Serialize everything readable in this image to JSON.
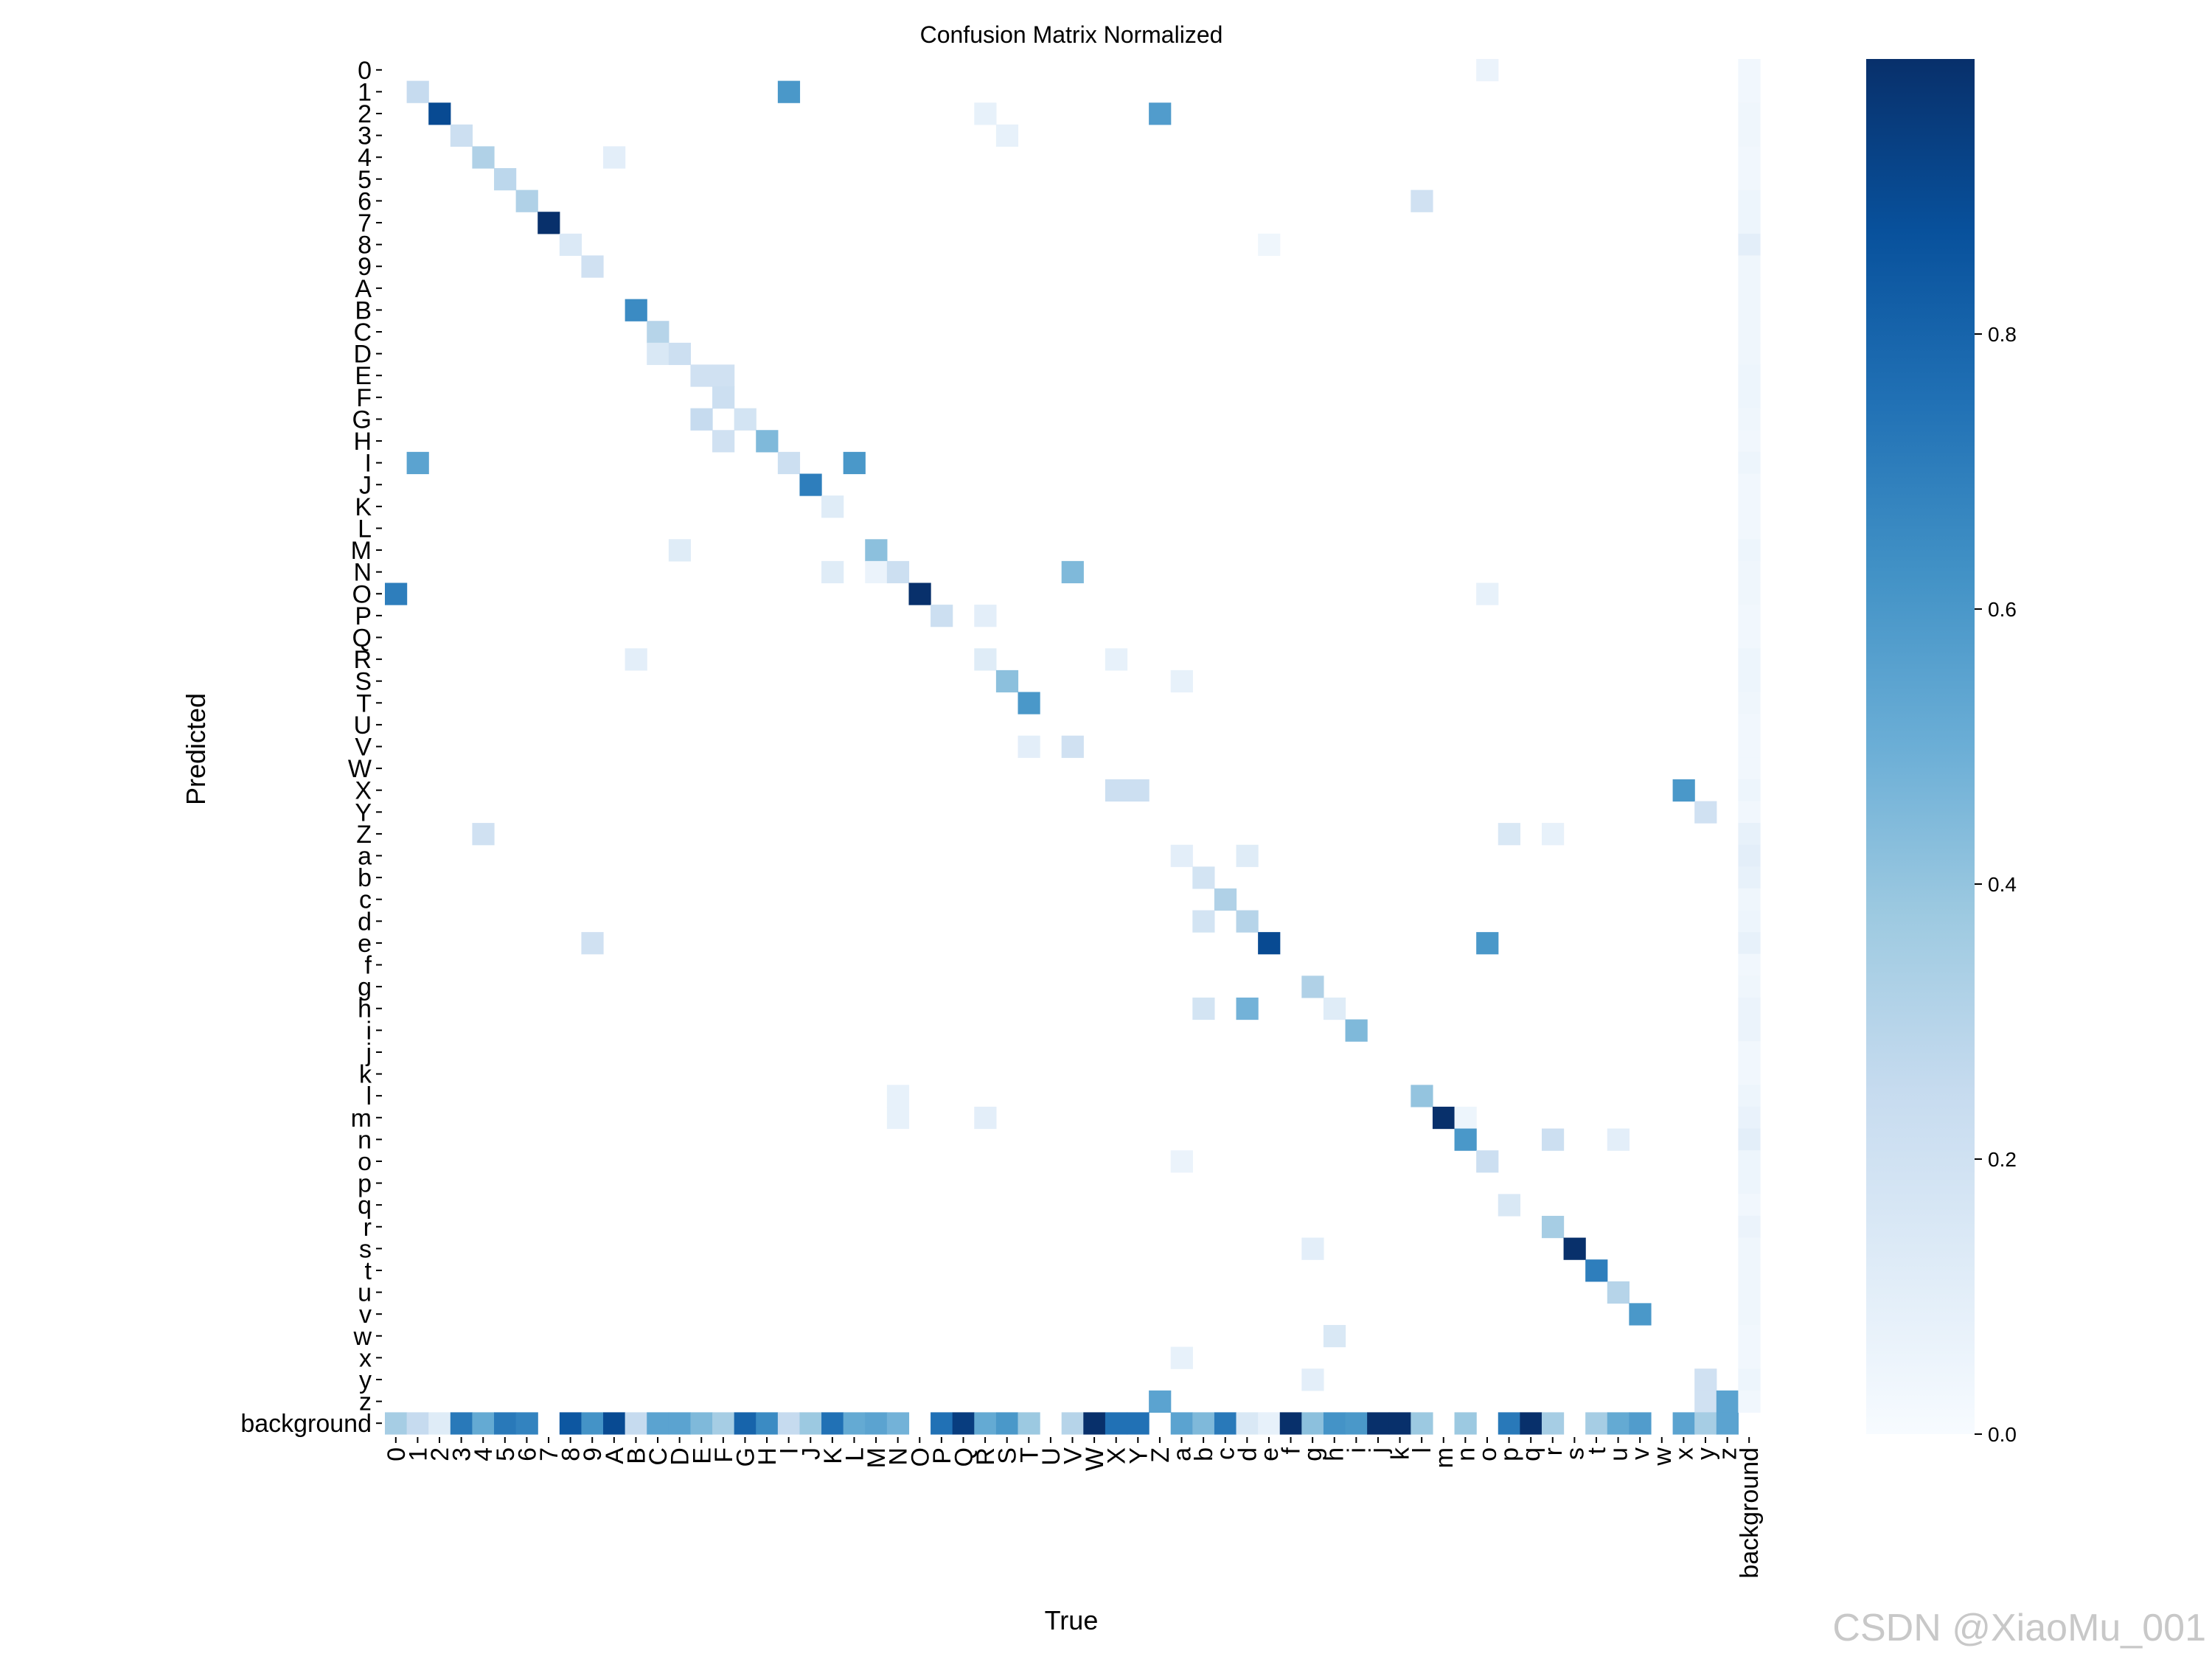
{
  "chart_data": {
    "type": "heatmap",
    "title": "Confusion Matrix Normalized",
    "xlabel": "True",
    "ylabel": "Predicted",
    "labels": [
      "0",
      "1",
      "2",
      "3",
      "4",
      "5",
      "6",
      "7",
      "8",
      "9",
      "A",
      "B",
      "C",
      "D",
      "E",
      "F",
      "G",
      "H",
      "I",
      "J",
      "K",
      "L",
      "M",
      "N",
      "O",
      "P",
      "Q",
      "R",
      "S",
      "T",
      "U",
      "V",
      "W",
      "X",
      "Y",
      "Z",
      "a",
      "b",
      "c",
      "d",
      "e",
      "f",
      "g",
      "h",
      "i",
      "j",
      "k",
      "l",
      "m",
      "n",
      "o",
      "p",
      "q",
      "r",
      "s",
      "t",
      "u",
      "v",
      "w",
      "x",
      "y",
      "z",
      "background"
    ],
    "colorbar": {
      "ticks": [
        0.0,
        0.2,
        0.4,
        0.6,
        0.8
      ],
      "tick_labels": [
        "0.0",
        "0.2",
        "0.4",
        "0.6",
        "0.8"
      ],
      "vmin": 0.0,
      "vmax": 1.0
    },
    "colormap": [
      "#f7fbff",
      "#deebf7",
      "#c6dbef",
      "#9ecae1",
      "#6baed6",
      "#4292c6",
      "#2171b5",
      "#08519c",
      "#08306b"
    ],
    "cells": [
      [
        0,
        50,
        0.06
      ],
      [
        1,
        1,
        0.25
      ],
      [
        1,
        18,
        0.6
      ],
      [
        2,
        2,
        0.9
      ],
      [
        2,
        27,
        0.08
      ],
      [
        2,
        35,
        0.58
      ],
      [
        3,
        3,
        0.22
      ],
      [
        3,
        28,
        0.08
      ],
      [
        4,
        4,
        0.32
      ],
      [
        4,
        10,
        0.1
      ],
      [
        5,
        5,
        0.28
      ],
      [
        6,
        6,
        0.32
      ],
      [
        6,
        47,
        0.2
      ],
      [
        7,
        7,
        1.0
      ],
      [
        8,
        8,
        0.14
      ],
      [
        8,
        40,
        0.04
      ],
      [
        9,
        9,
        0.2
      ],
      [
        11,
        11,
        0.65
      ],
      [
        12,
        12,
        0.3
      ],
      [
        13,
        12,
        0.15
      ],
      [
        13,
        13,
        0.22
      ],
      [
        14,
        14,
        0.2
      ],
      [
        14,
        15,
        0.2
      ],
      [
        15,
        15,
        0.22
      ],
      [
        16,
        14,
        0.25
      ],
      [
        16,
        16,
        0.18
      ],
      [
        17,
        15,
        0.2
      ],
      [
        17,
        17,
        0.45
      ],
      [
        18,
        1,
        0.55
      ],
      [
        18,
        18,
        0.22
      ],
      [
        18,
        21,
        0.6
      ],
      [
        19,
        19,
        0.7
      ],
      [
        20,
        20,
        0.12
      ],
      [
        22,
        13,
        0.12
      ],
      [
        22,
        22,
        0.42
      ],
      [
        23,
        20,
        0.12
      ],
      [
        23,
        22,
        0.06
      ],
      [
        23,
        23,
        0.22
      ],
      [
        23,
        31,
        0.45
      ],
      [
        24,
        0,
        0.7
      ],
      [
        24,
        24,
        1.0
      ],
      [
        24,
        50,
        0.08
      ],
      [
        25,
        25,
        0.22
      ],
      [
        25,
        27,
        0.1
      ],
      [
        27,
        11,
        0.1
      ],
      [
        27,
        27,
        0.12
      ],
      [
        27,
        33,
        0.08
      ],
      [
        28,
        28,
        0.42
      ],
      [
        28,
        36,
        0.08
      ],
      [
        29,
        29,
        0.6
      ],
      [
        31,
        29,
        0.1
      ],
      [
        31,
        31,
        0.2
      ],
      [
        33,
        33,
        0.22
      ],
      [
        33,
        34,
        0.22
      ],
      [
        33,
        59,
        0.6
      ],
      [
        34,
        60,
        0.2
      ],
      [
        35,
        4,
        0.2
      ],
      [
        35,
        51,
        0.15
      ],
      [
        35,
        53,
        0.08
      ],
      [
        36,
        36,
        0.1
      ],
      [
        36,
        39,
        0.12
      ],
      [
        37,
        37,
        0.18
      ],
      [
        38,
        38,
        0.32
      ],
      [
        39,
        37,
        0.18
      ],
      [
        39,
        39,
        0.3
      ],
      [
        40,
        9,
        0.2
      ],
      [
        40,
        40,
        0.9
      ],
      [
        40,
        50,
        0.6
      ],
      [
        42,
        42,
        0.32
      ],
      [
        43,
        37,
        0.18
      ],
      [
        43,
        39,
        0.48
      ],
      [
        43,
        43,
        0.12
      ],
      [
        44,
        44,
        0.45
      ],
      [
        47,
        23,
        0.08
      ],
      [
        47,
        47,
        0.4
      ],
      [
        48,
        23,
        0.08
      ],
      [
        48,
        27,
        0.1
      ],
      [
        48,
        48,
        1.0
      ],
      [
        48,
        49,
        0.05
      ],
      [
        49,
        49,
        0.6
      ],
      [
        49,
        53,
        0.22
      ],
      [
        49,
        56,
        0.1
      ],
      [
        50,
        36,
        0.06
      ],
      [
        50,
        50,
        0.22
      ],
      [
        52,
        51,
        0.15
      ],
      [
        53,
        53,
        0.35
      ],
      [
        54,
        42,
        0.1
      ],
      [
        54,
        54,
        1.0
      ],
      [
        55,
        55,
        0.7
      ],
      [
        56,
        56,
        0.3
      ],
      [
        57,
        57,
        0.6
      ],
      [
        58,
        43,
        0.15
      ],
      [
        59,
        36,
        0.08
      ],
      [
        60,
        42,
        0.1
      ],
      [
        60,
        60,
        0.2
      ],
      [
        61,
        35,
        0.55
      ],
      [
        61,
        60,
        0.2
      ],
      [
        61,
        61,
        0.55
      ],
      [
        62,
        0,
        0.35
      ],
      [
        62,
        1,
        0.25
      ],
      [
        62,
        2,
        0.12
      ],
      [
        62,
        3,
        0.72
      ],
      [
        62,
        4,
        0.52
      ],
      [
        62,
        5,
        0.72
      ],
      [
        62,
        6,
        0.68
      ],
      [
        62,
        8,
        0.85
      ],
      [
        62,
        9,
        0.62
      ],
      [
        62,
        10,
        0.9
      ],
      [
        62,
        11,
        0.25
      ],
      [
        62,
        12,
        0.55
      ],
      [
        62,
        13,
        0.55
      ],
      [
        62,
        14,
        0.45
      ],
      [
        62,
        15,
        0.35
      ],
      [
        62,
        16,
        0.8
      ],
      [
        62,
        17,
        0.65
      ],
      [
        62,
        18,
        0.25
      ],
      [
        62,
        19,
        0.38
      ],
      [
        62,
        20,
        0.75
      ],
      [
        62,
        21,
        0.52
      ],
      [
        62,
        22,
        0.55
      ],
      [
        62,
        23,
        0.48
      ],
      [
        62,
        25,
        0.75
      ],
      [
        62,
        26,
        0.95
      ],
      [
        62,
        27,
        0.52
      ],
      [
        62,
        28,
        0.6
      ],
      [
        62,
        29,
        0.38
      ],
      [
        62,
        31,
        0.3
      ],
      [
        62,
        32,
        1.0
      ],
      [
        62,
        33,
        0.75
      ],
      [
        62,
        34,
        0.75
      ],
      [
        62,
        36,
        0.55
      ],
      [
        62,
        37,
        0.45
      ],
      [
        62,
        38,
        0.72
      ],
      [
        62,
        39,
        0.15
      ],
      [
        62,
        40,
        0.08
      ],
      [
        62,
        41,
        1.0
      ],
      [
        62,
        42,
        0.42
      ],
      [
        62,
        43,
        0.62
      ],
      [
        62,
        44,
        0.6
      ],
      [
        62,
        45,
        1.0
      ],
      [
        62,
        46,
        1.0
      ],
      [
        62,
        47,
        0.38
      ],
      [
        62,
        49,
        0.38
      ],
      [
        62,
        51,
        0.72
      ],
      [
        62,
        52,
        1.0
      ],
      [
        62,
        53,
        0.35
      ],
      [
        62,
        55,
        0.35
      ],
      [
        62,
        56,
        0.52
      ],
      [
        62,
        57,
        0.58
      ],
      [
        62,
        59,
        0.55
      ],
      [
        62,
        60,
        0.35
      ],
      [
        62,
        61,
        0.55
      ],
      [
        0,
        62,
        0.03
      ],
      [
        1,
        62,
        0.03
      ],
      [
        2,
        62,
        0.04
      ],
      [
        3,
        62,
        0.04
      ],
      [
        4,
        62,
        0.03
      ],
      [
        5,
        62,
        0.03
      ],
      [
        6,
        62,
        0.05
      ],
      [
        7,
        62,
        0.05
      ],
      [
        8,
        62,
        0.1
      ],
      [
        9,
        62,
        0.04
      ],
      [
        10,
        62,
        0.04
      ],
      [
        11,
        62,
        0.04
      ],
      [
        12,
        62,
        0.04
      ],
      [
        13,
        62,
        0.04
      ],
      [
        14,
        62,
        0.05
      ],
      [
        15,
        62,
        0.05
      ],
      [
        16,
        62,
        0.04
      ],
      [
        17,
        62,
        0.03
      ],
      [
        18,
        62,
        0.05
      ],
      [
        19,
        62,
        0.03
      ],
      [
        20,
        62,
        0.03
      ],
      [
        21,
        62,
        0.03
      ],
      [
        22,
        62,
        0.05
      ],
      [
        23,
        62,
        0.04
      ],
      [
        24,
        62,
        0.04
      ],
      [
        25,
        62,
        0.03
      ],
      [
        26,
        62,
        0.03
      ],
      [
        27,
        62,
        0.05
      ],
      [
        28,
        62,
        0.05
      ],
      [
        29,
        62,
        0.04
      ],
      [
        30,
        62,
        0.03
      ],
      [
        31,
        62,
        0.03
      ],
      [
        32,
        62,
        0.03
      ],
      [
        33,
        62,
        0.05
      ],
      [
        34,
        62,
        0.03
      ],
      [
        35,
        62,
        0.08
      ],
      [
        36,
        62,
        0.1
      ],
      [
        37,
        62,
        0.08
      ],
      [
        38,
        62,
        0.04
      ],
      [
        39,
        62,
        0.05
      ],
      [
        40,
        62,
        0.08
      ],
      [
        41,
        62,
        0.03
      ],
      [
        42,
        62,
        0.04
      ],
      [
        43,
        62,
        0.06
      ],
      [
        44,
        62,
        0.06
      ],
      [
        45,
        62,
        0.03
      ],
      [
        46,
        62,
        0.03
      ],
      [
        47,
        62,
        0.05
      ],
      [
        48,
        62,
        0.07
      ],
      [
        49,
        62,
        0.1
      ],
      [
        50,
        62,
        0.05
      ],
      [
        51,
        62,
        0.05
      ],
      [
        52,
        62,
        0.03
      ],
      [
        53,
        62,
        0.06
      ],
      [
        54,
        62,
        0.04
      ],
      [
        55,
        62,
        0.04
      ],
      [
        56,
        62,
        0.04
      ],
      [
        57,
        62,
        0.04
      ],
      [
        58,
        62,
        0.03
      ],
      [
        59,
        62,
        0.03
      ],
      [
        60,
        62,
        0.05
      ],
      [
        61,
        62,
        0.03
      ]
    ]
  },
  "watermark": "CSDN @XiaoMu_001"
}
